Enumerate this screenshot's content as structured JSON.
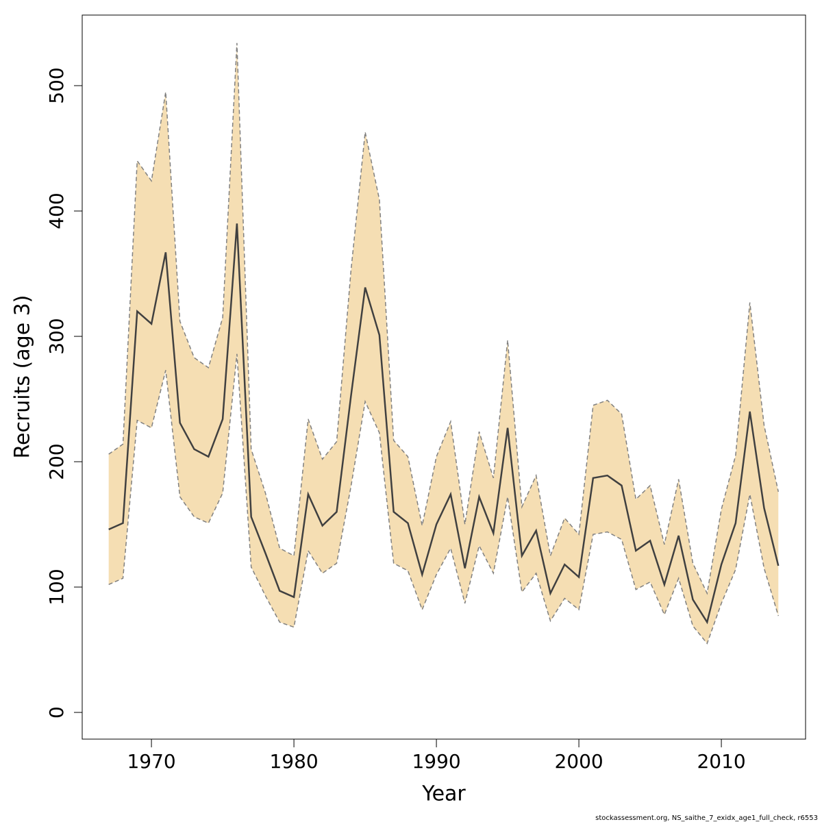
{
  "chart_data": {
    "type": "band-line",
    "xlabel": "Year",
    "ylabel": "Recruits (age 3)",
    "footnote": "stockassessment.org, NS_saithe_7_exidx_age1_full_check, r6553",
    "x": [
      1967,
      1968,
      1969,
      1970,
      1971,
      1972,
      1973,
      1974,
      1975,
      1976,
      1977,
      1978,
      1979,
      1980,
      1981,
      1982,
      1983,
      1984,
      1985,
      1986,
      1987,
      1988,
      1989,
      1990,
      1991,
      1992,
      1993,
      1994,
      1995,
      1996,
      1997,
      1998,
      1999,
      2000,
      2001,
      2002,
      2003,
      2004,
      2005,
      2006,
      2007,
      2008,
      2009,
      2010,
      2011,
      2012,
      2013,
      2014
    ],
    "values": [
      146,
      151,
      320,
      310,
      367,
      231,
      210,
      204,
      234,
      390,
      156,
      127,
      97,
      92,
      174,
      149,
      160,
      252,
      339,
      301,
      160,
      151,
      110,
      150,
      174,
      115,
      172,
      143,
      227,
      125,
      145,
      95,
      118,
      108,
      187,
      189,
      181,
      129,
      137,
      102,
      141,
      90,
      72,
      118,
      151,
      240,
      163,
      117
    ],
    "upper": [
      206,
      214,
      440,
      424,
      495,
      312,
      283,
      275,
      315,
      534,
      210,
      175,
      131,
      125,
      234,
      202,
      216,
      352,
      463,
      409,
      217,
      204,
      149,
      204,
      232,
      150,
      224,
      187,
      297,
      164,
      189,
      125,
      155,
      142,
      245,
      249,
      238,
      170,
      181,
      134,
      186,
      119,
      95,
      162,
      205,
      327,
      229,
      176
    ],
    "lower": [
      102,
      107,
      233,
      227,
      273,
      172,
      156,
      151,
      175,
      286,
      116,
      93,
      72,
      68,
      129,
      111,
      119,
      180,
      248,
      223,
      119,
      113,
      82,
      110,
      131,
      87,
      133,
      111,
      172,
      96,
      111,
      73,
      91,
      82,
      142,
      144,
      138,
      98,
      104,
      78,
      107,
      69,
      55,
      87,
      114,
      174,
      115,
      77
    ],
    "line_color": "#404040",
    "band_color": "#f5deb3",
    "band_edge_color": "#808080",
    "xlim": [
      1965.14,
      2015.91
    ],
    "xticks": [
      1970,
      1980,
      1990,
      2000,
      2010
    ],
    "ylim": [
      -21.3,
      556.3
    ],
    "yticks": [
      0,
      100,
      200,
      300,
      400,
      500
    ]
  }
}
